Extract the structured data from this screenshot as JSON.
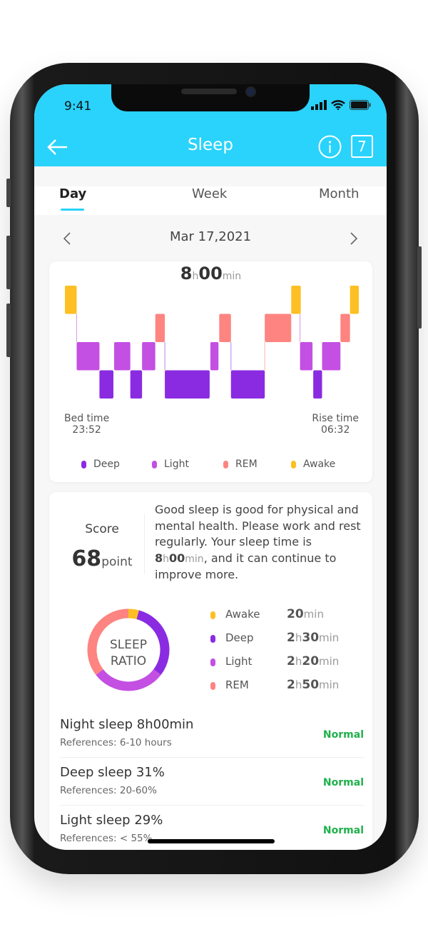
{
  "status_bar": {
    "time": "9:41"
  },
  "header": {
    "title": "Sleep",
    "back_icon": "arrow-left-icon",
    "info_icon": "info-icon",
    "calendar_icon": "calendar-icon",
    "calendar_day": "7"
  },
  "tabs": [
    {
      "label": "Day",
      "active": true
    },
    {
      "label": "Week",
      "active": false
    },
    {
      "label": "Month",
      "active": false
    }
  ],
  "date_nav": {
    "date": "Mar 17,2021",
    "prev_icon": "chevron-left-icon",
    "next_icon": "chevron-right-icon"
  },
  "summary": {
    "hours": "8",
    "h_unit": "h",
    "minutes": "00",
    "min_unit": "min"
  },
  "colors": {
    "Deep": "#8a2be2",
    "Light": "#c44fe3",
    "REM": "#fd8481",
    "Awake": "#fdbf23",
    "accent": "#29d3fb",
    "normal": "#1fb04b"
  },
  "chart_data": {
    "type": "hypnogram",
    "levels": [
      "Awake",
      "REM",
      "Light",
      "Deep"
    ],
    "x_unit": "minutes after bed time",
    "xlim": [
      0,
      400
    ],
    "segments": [
      {
        "stage": "Awake",
        "start": 0,
        "end": 16
      },
      {
        "stage": "Light",
        "start": 16,
        "end": 47
      },
      {
        "stage": "Deep",
        "start": 47,
        "end": 66
      },
      {
        "stage": "Light",
        "start": 67,
        "end": 89
      },
      {
        "stage": "Deep",
        "start": 89,
        "end": 105
      },
      {
        "stage": "Light",
        "start": 105,
        "end": 123
      },
      {
        "stage": "REM",
        "start": 123,
        "end": 136
      },
      {
        "stage": "Deep",
        "start": 136,
        "end": 197
      },
      {
        "stage": "Light",
        "start": 198,
        "end": 209
      },
      {
        "stage": "REM",
        "start": 210,
        "end": 226
      },
      {
        "stage": "Deep",
        "start": 226,
        "end": 272
      },
      {
        "stage": "REM",
        "start": 272,
        "end": 308
      },
      {
        "stage": "Awake",
        "start": 308,
        "end": 321
      },
      {
        "stage": "Light",
        "start": 320,
        "end": 337
      },
      {
        "stage": "Deep",
        "start": 338,
        "end": 350
      },
      {
        "stage": "Light",
        "start": 350,
        "end": 375
      },
      {
        "stage": "REM",
        "start": 375,
        "end": 388
      },
      {
        "stage": "Awake",
        "start": 388,
        "end": 400
      }
    ],
    "bed_time_label": "Bed time",
    "bed_time": "23:52",
    "rise_time_label": "Rise time",
    "rise_time": "06:32",
    "legend": [
      "Deep",
      "Light",
      "REM",
      "Awake"
    ]
  },
  "score": {
    "label": "Score",
    "value": "68",
    "unit": "point",
    "message_pre": "Good sleep is good for physical and mental health. Please work and rest regularly. Your sleep time is ",
    "msg_h": "8",
    "msg_hu": "h",
    "msg_m": "00",
    "msg_mu": "min",
    "message_post": ", and it can continue to improve more."
  },
  "ratio": {
    "center_line1": "SLEEP",
    "center_line2": "RATIO",
    "items": [
      {
        "name": "Awake",
        "h": "",
        "m": "20",
        "minutes": 20
      },
      {
        "name": "Deep",
        "h": "2",
        "m": "30",
        "minutes": 150
      },
      {
        "name": "Light",
        "h": "2",
        "m": "20",
        "minutes": 140
      },
      {
        "name": "REM",
        "h": "2",
        "m": "50",
        "minutes": 170
      }
    ]
  },
  "metrics": [
    {
      "title": "Night sleep 8h00min",
      "ref": "References: 6-10 hours",
      "status": "Normal"
    },
    {
      "title": "Deep sleep 31%",
      "ref": "References: 20-60%",
      "status": "Normal"
    },
    {
      "title": "Light sleep 29%",
      "ref": "References: < 55%",
      "status": "Normal"
    }
  ]
}
